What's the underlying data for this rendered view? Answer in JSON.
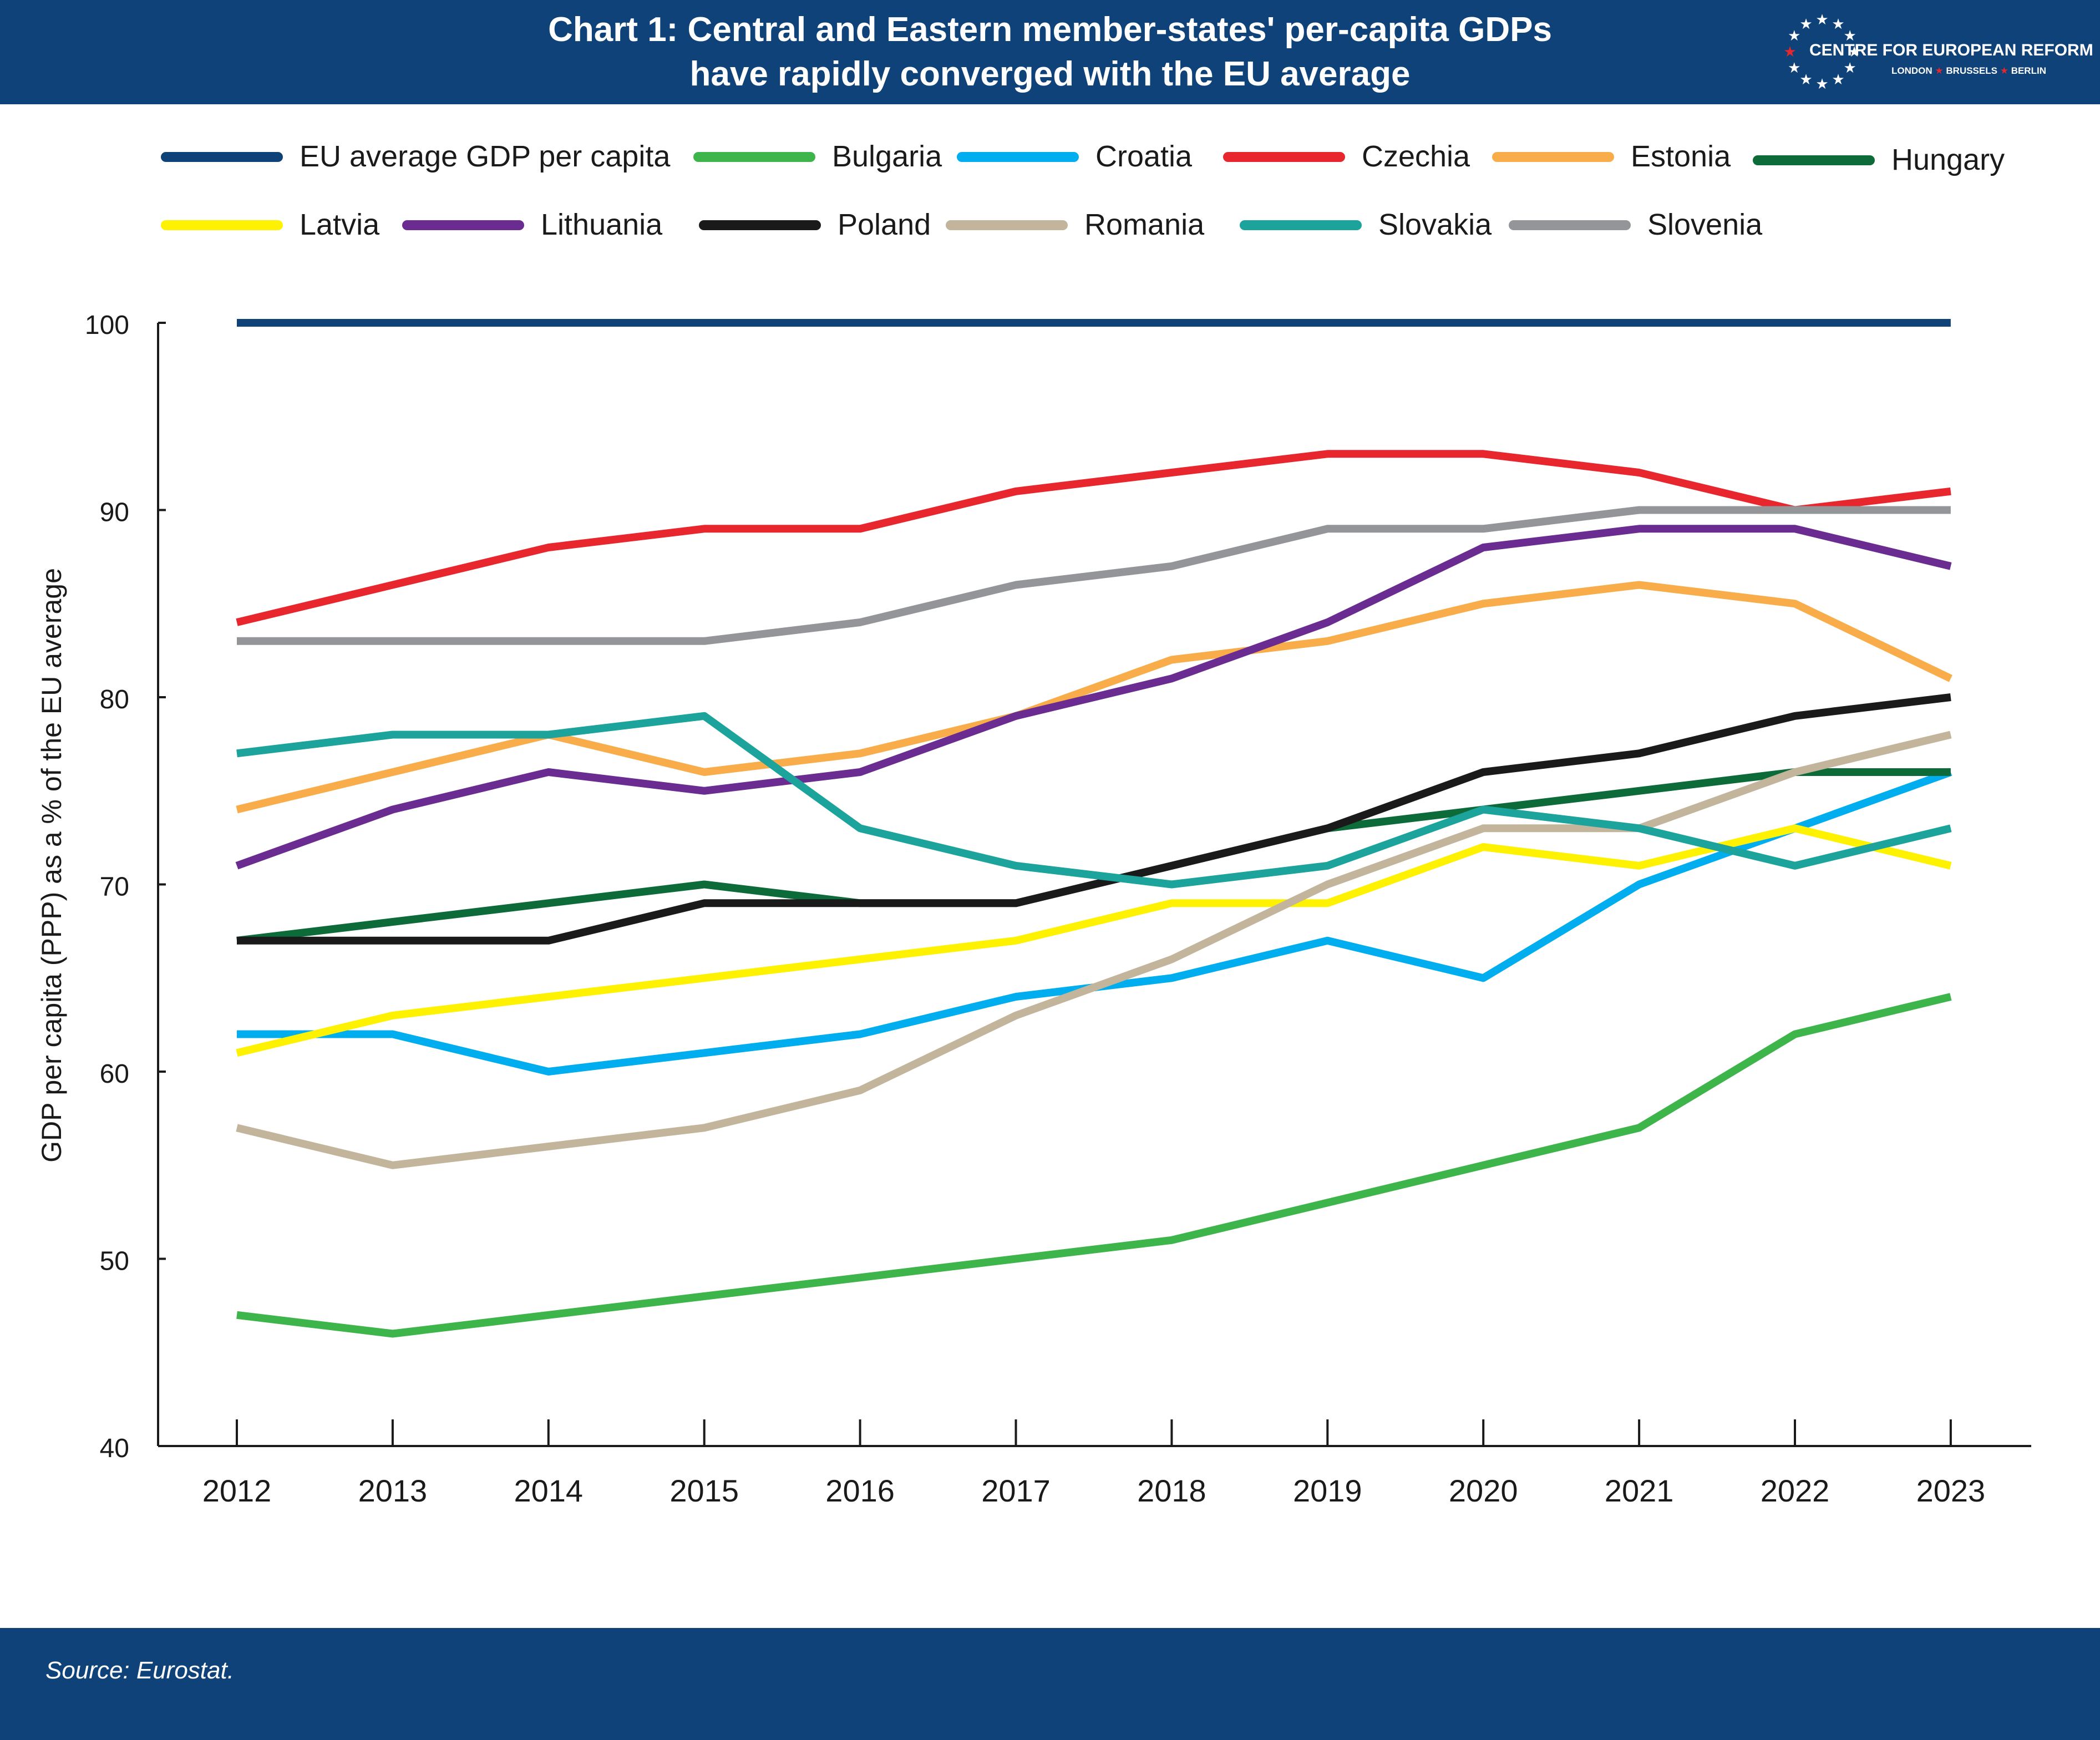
{
  "header": {
    "title_line1": "Chart 1: Central and Eastern member-states' per-capita GDPs",
    "title_line2": "have rapidly converged with the EU average",
    "background": "#0f4279"
  },
  "logo": {
    "name": "CENTRE FOR EUROPEAN REFORM",
    "cities": [
      "LONDON",
      "BRUSSELS",
      "BERLIN"
    ],
    "star_color": "#ffffff",
    "accent_star_color": "#e8262d"
  },
  "footer": {
    "source": "Source: Eurostat."
  },
  "chart_data": {
    "type": "line",
    "title": "Chart 1: Central and Eastern member-states' per-capita GDPs have rapidly converged with the EU average",
    "ylabel": "GDP per capita (PPP) as a % of the EU average",
    "xlabel": "",
    "ylim": [
      40,
      100
    ],
    "yticks": [
      40,
      50,
      60,
      70,
      80,
      90,
      100
    ],
    "x": [
      "2012",
      "2013",
      "2014",
      "2015",
      "2016",
      "2017",
      "2018",
      "2019",
      "2020",
      "2021",
      "2022",
      "2023"
    ],
    "grid": false,
    "legend_position": "top",
    "series": [
      {
        "name": "EU average GDP per capita",
        "color": "#0f4279",
        "values": [
          100,
          100,
          100,
          100,
          100,
          100,
          100,
          100,
          100,
          100,
          100,
          100
        ]
      },
      {
        "name": "Bulgaria",
        "color": "#3db54a",
        "values": [
          47,
          46,
          47,
          48,
          49,
          50,
          51,
          53,
          55,
          57,
          62,
          64
        ]
      },
      {
        "name": "Croatia",
        "color": "#00aeef",
        "values": [
          62,
          62,
          60,
          61,
          62,
          64,
          65,
          67,
          65,
          70,
          73,
          76
        ]
      },
      {
        "name": "Czechia",
        "color": "#e8262d",
        "values": [
          84,
          86,
          88,
          89,
          89,
          91,
          92,
          93,
          93,
          92,
          90,
          91
        ]
      },
      {
        "name": "Estonia",
        "color": "#f9ad4a",
        "values": [
          74,
          76,
          78,
          76,
          77,
          79,
          82,
          83,
          85,
          86,
          85,
          81
        ]
      },
      {
        "name": "Hungary",
        "color": "#0d6b3a",
        "values": [
          67,
          68,
          69,
          70,
          69,
          69,
          71,
          73,
          74,
          75,
          76,
          76
        ]
      },
      {
        "name": "Latvia",
        "color": "#fff200",
        "values": [
          61,
          63,
          64,
          65,
          66,
          67,
          69,
          69,
          72,
          71,
          73,
          71
        ]
      },
      {
        "name": "Lithuania",
        "color": "#6a2c91",
        "values": [
          71,
          74,
          76,
          75,
          76,
          79,
          81,
          84,
          88,
          89,
          89,
          87
        ]
      },
      {
        "name": "Poland",
        "color": "#1a1a1a",
        "values": [
          67,
          67,
          67,
          69,
          69,
          69,
          71,
          73,
          76,
          77,
          79,
          80
        ]
      },
      {
        "name": "Romania",
        "color": "#c3b59c",
        "values": [
          57,
          55,
          56,
          57,
          59,
          63,
          66,
          70,
          73,
          73,
          76,
          78
        ]
      },
      {
        "name": "Slovakia",
        "color": "#1ba39c",
        "values": [
          77,
          78,
          78,
          79,
          73,
          71,
          70,
          71,
          74,
          73,
          71,
          73
        ]
      },
      {
        "name": "Slovenia",
        "color": "#939598",
        "values": [
          83,
          83,
          83,
          83,
          84,
          86,
          87,
          89,
          89,
          90,
          90,
          90
        ]
      }
    ]
  }
}
